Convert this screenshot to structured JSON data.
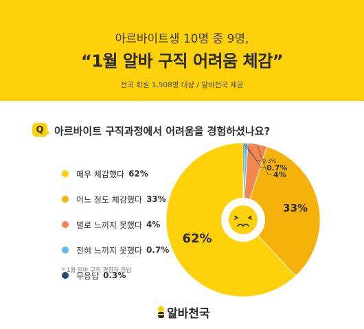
{
  "header": {
    "subtitle": "아르바이트생 10명 중 9명,",
    "title": "“1월 알바 구직 어려움 체감”",
    "source": "전국 회원 1,508명 대상 / 알바천국 제공"
  },
  "question": {
    "badge": "Q",
    "text": "아르바이트 구직과정에서 어려움을 경험하셨나요?"
  },
  "chart_data": {
    "type": "pie",
    "title": "아르바이트 구직과정에서 어려움을 경험하셨나요?",
    "unit": "%",
    "categories": [
      "매우 체감했다",
      "어느 정도 체감했다",
      "별로 느끼지 못했다",
      "전혀 느끼지 못했다",
      "무응답"
    ],
    "values": [
      62,
      33,
      4,
      0.7,
      0.3
    ],
    "value_labels": [
      "62%",
      "33%",
      "4%",
      "0.7%",
      "0.3%"
    ],
    "colors": [
      "#ffd10a",
      "#f5b20a",
      "#f2874f",
      "#5bbde8",
      "#24496e"
    ],
    "legend_position": "left",
    "center_icon": "sad-face-icon"
  },
  "footnote": "* 1월 알바 구직 경험자 응답",
  "logo": {
    "text": "알바천국",
    "icon": "bee-icon"
  }
}
